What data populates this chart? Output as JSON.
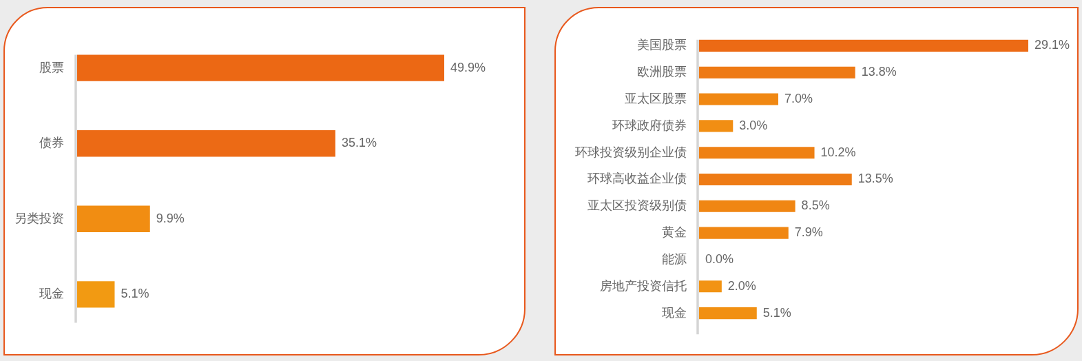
{
  "chart_data": [
    {
      "type": "bar",
      "orientation": "horizontal",
      "categories": [
        "股票",
        "债券",
        "另类投资",
        "现金"
      ],
      "values": [
        49.9,
        35.1,
        9.9,
        5.1
      ],
      "value_labels": [
        "49.9%",
        "35.1%",
        "9.9%",
        "5.1%"
      ],
      "colors": [
        "#ec6814",
        "#ec6a15",
        "#f18d12",
        "#f29a12"
      ],
      "tick_labels": "y"
    },
    {
      "type": "bar",
      "orientation": "horizontal",
      "categories": [
        "美国股票",
        "欧洲股票",
        "亚太区股票",
        "环球政府债券",
        "环球投资级别企业债",
        "环球高收益企业债",
        "亚太区投资级别债",
        "黄金",
        "能源",
        "房地产投资信托",
        "现金"
      ],
      "values": [
        29.1,
        13.8,
        7.0,
        3.0,
        10.2,
        13.5,
        8.5,
        7.9,
        0.0,
        2.0,
        5.1
      ],
      "value_labels": [
        "29.1%",
        "13.8%",
        "7.0%",
        "3.0%",
        "10.2%",
        "13.5%",
        "8.5%",
        "7.9%",
        "0.0%",
        "2.0%",
        "5.1%"
      ],
      "colors": [
        "#ec6a15",
        "#ee7a15",
        "#f08813",
        "#f18e13",
        "#ef8114",
        "#ee7b15",
        "#f08613",
        "#f08713",
        "#f19012",
        "#f29313",
        "#f19012"
      ],
      "tick_labels": "y"
    }
  ]
}
